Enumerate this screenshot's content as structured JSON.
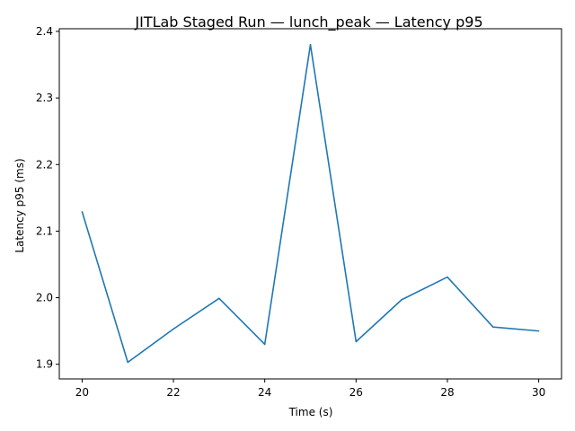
{
  "chart_data": {
    "type": "line",
    "title": "JITLab Staged Run — lunch_peak — Latency p95",
    "xlabel": "Time (s)",
    "ylabel": "Latency p95 (ms)",
    "xlim": [
      19.5,
      30.5
    ],
    "ylim": [
      1.878,
      2.404
    ],
    "xticks": [
      20,
      22,
      24,
      26,
      28,
      30
    ],
    "yticks": [
      1.9,
      2.0,
      2.1,
      2.2,
      2.3,
      2.4
    ],
    "xtick_labels": [
      "20",
      "22",
      "24",
      "26",
      "28",
      "30"
    ],
    "ytick_labels": [
      "1.9",
      "2.0",
      "2.1",
      "2.2",
      "2.3",
      "2.4"
    ],
    "grid": false,
    "series": [
      {
        "color": "#1f77b4",
        "x": [
          20,
          21,
          22,
          23,
          24,
          25,
          26,
          27,
          28,
          29,
          30
        ],
        "y": [
          2.129,
          1.903,
          1.953,
          1.999,
          1.93,
          2.38,
          1.934,
          1.997,
          2.031,
          1.956,
          1.95
        ]
      }
    ]
  }
}
